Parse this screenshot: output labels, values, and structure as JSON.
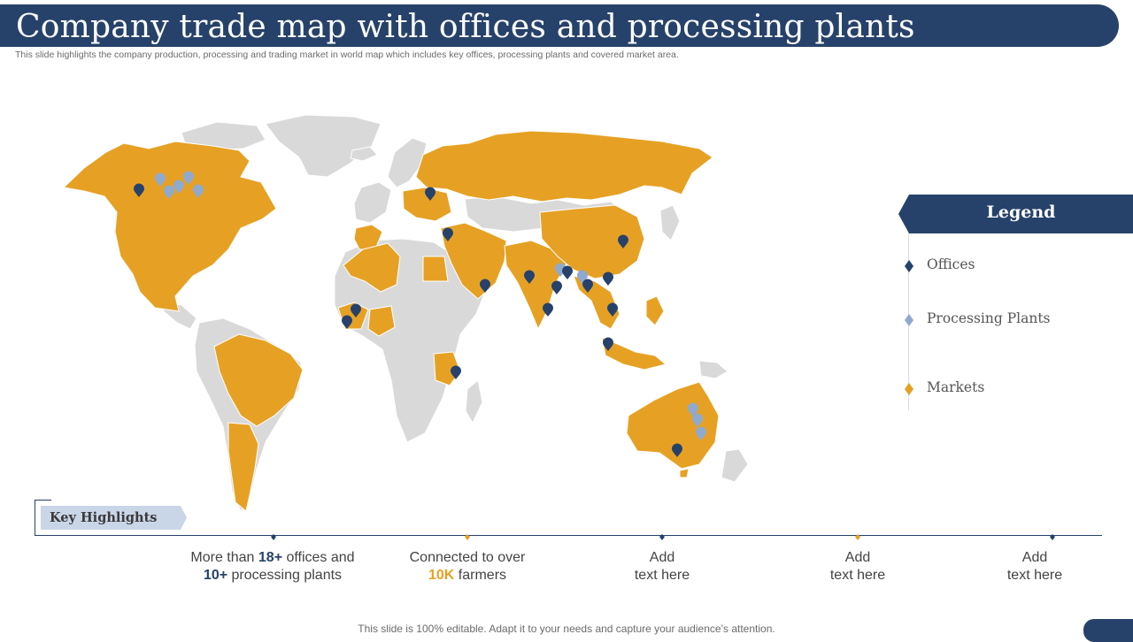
{
  "header": {
    "title": "Company trade map with offices and processing plants",
    "subtitle": "This slide highlights the company production, processing and trading market in world map which includes key offices, processing plants and covered market area."
  },
  "colors": {
    "navy": "#27426a",
    "gold": "#e6a124",
    "light_blue": "#8fa9cf",
    "land_gray": "#d9d9d9",
    "tag_blue": "#c9d6e8"
  },
  "legend": {
    "title": "Legend",
    "items": [
      {
        "label": "Offices",
        "color": "#27426a",
        "icon": "pin-icon"
      },
      {
        "label": "Processing Plants",
        "color": "#8fa9cf",
        "icon": "pin-icon"
      },
      {
        "label": "Markets",
        "color": "#e6a124",
        "icon": "pin-icon"
      }
    ]
  },
  "highlights": {
    "label": "Key Highlights",
    "items": [
      {
        "line1_pre": "More than ",
        "line1_num": "18+",
        "line1_post": " offices and",
        "line2_num": "10+",
        "line2_post": " processing plants"
      },
      {
        "line1_pre": "Connected to over",
        "line2_num": "10K",
        "line2_post": " farmers"
      },
      {
        "line1_pre": "Add",
        "line2_post": "text here"
      },
      {
        "line1_pre": "Add",
        "line2_post": "text here"
      },
      {
        "line1_pre": "Add",
        "line2_post": "text here"
      }
    ]
  },
  "footer": {
    "text": "This slide is 100% editable. Adapt it to your needs and capture your audience’s attention."
  }
}
